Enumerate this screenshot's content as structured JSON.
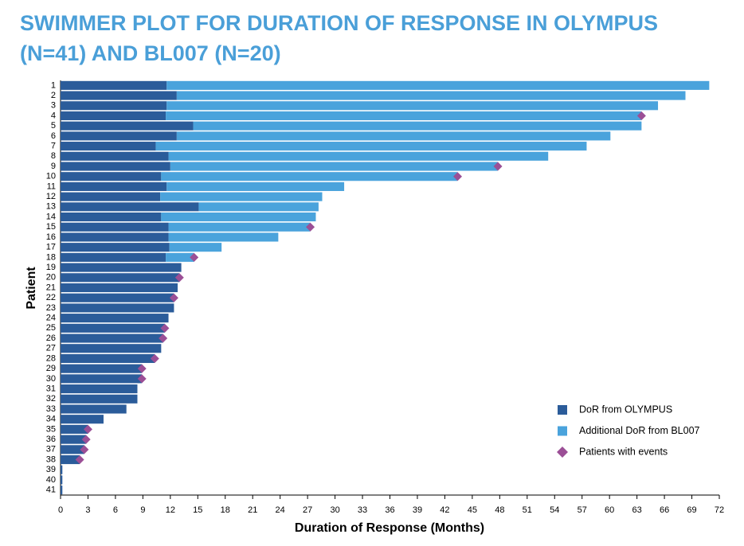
{
  "chart_data": {
    "type": "swimmer",
    "title": [
      "SWIMMER PLOT FOR DURATION OF RESPONSE IN OLYMPUS",
      "(N=41) AND BL007 (N=20)"
    ],
    "x_label": "Duration of Response (Months)",
    "y_label": "Patient",
    "categories": [
      "1",
      "2",
      "3",
      "4",
      "5",
      "6",
      "7",
      "8",
      "9",
      "10",
      "11",
      "12",
      "13",
      "14",
      "15",
      "16",
      "17",
      "18",
      "19",
      "20",
      "21",
      "22",
      "23",
      "24",
      "25",
      "26",
      "27",
      "28",
      "29",
      "30",
      "31",
      "32",
      "33",
      "34",
      "35",
      "36",
      "37",
      "38",
      "39",
      "40",
      "41"
    ],
    "series": [
      {
        "name": "DoR from OLYMPUS",
        "color": "#2b5c9a",
        "values": [
          11.6,
          12.7,
          11.6,
          11.5,
          14.5,
          12.7,
          10.4,
          11.8,
          12.0,
          11.0,
          11.6,
          10.9,
          15.1,
          11.0,
          11.8,
          11.8,
          11.9,
          11.5,
          13.2,
          13.0,
          12.8,
          12.4,
          12.4,
          11.8,
          11.4,
          11.2,
          11.0,
          10.3,
          8.9,
          8.9,
          8.4,
          8.4,
          7.2,
          4.7,
          3.0,
          2.8,
          2.6,
          2.1,
          0.2,
          0.2,
          0.2
        ]
      },
      {
        "name": "Additional DoR from BL007",
        "color": "#4aa3dc",
        "values": [
          59.3,
          55.6,
          53.7,
          52.0,
          49.0,
          47.4,
          47.1,
          41.5,
          35.8,
          32.4,
          19.4,
          17.7,
          13.1,
          16.9,
          15.5,
          12.0,
          5.7,
          3.1,
          null,
          null,
          null,
          null,
          null,
          null,
          null,
          null,
          null,
          null,
          null,
          null,
          null,
          null,
          null,
          null,
          null,
          null,
          null,
          null,
          null,
          null,
          null
        ]
      },
      {
        "name": "Patients with events",
        "color": "#9b4f96",
        "values": [
          null,
          null,
          null,
          63.5,
          null,
          null,
          null,
          null,
          47.8,
          43.4,
          null,
          null,
          null,
          null,
          27.3,
          null,
          null,
          14.6,
          null,
          13.0,
          null,
          12.4,
          null,
          null,
          11.4,
          11.2,
          null,
          10.3,
          8.9,
          8.9,
          null,
          null,
          null,
          null,
          3.0,
          2.8,
          2.6,
          2.1,
          null,
          null,
          null
        ]
      }
    ],
    "xlim": [
      0,
      72
    ],
    "xticks": [
      0,
      3,
      6,
      9,
      12,
      15,
      18,
      21,
      24,
      27,
      30,
      33,
      36,
      39,
      42,
      45,
      48,
      51,
      54,
      57,
      60,
      63,
      66,
      69,
      72
    ],
    "legend": "lower right"
  }
}
